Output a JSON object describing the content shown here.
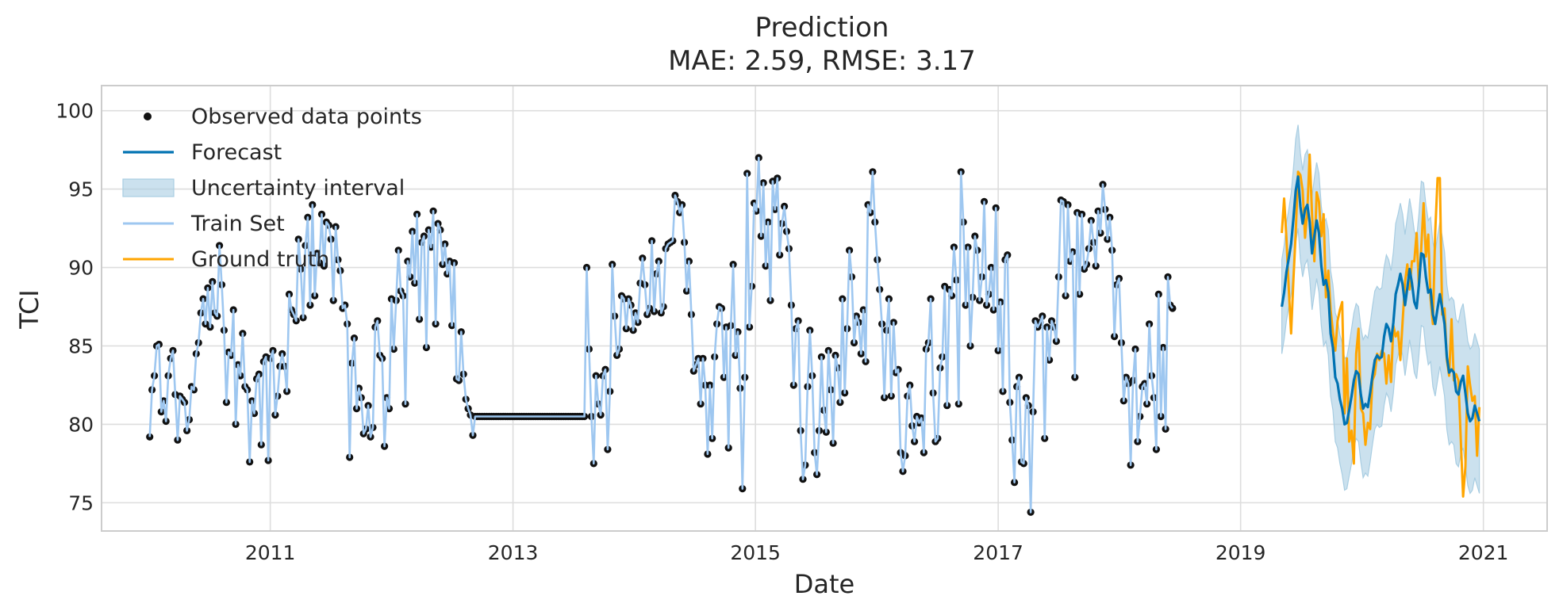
{
  "chart_data": {
    "type": "line",
    "title": "Prediction",
    "subtitle": "MAE: 2.59, RMSE: 3.17",
    "xlabel": "Date",
    "ylabel": "TCI",
    "xlim": [
      "2009-08-11",
      "2021-07-12"
    ],
    "ylim": [
      73.2,
      101.6
    ],
    "x_ticks": [
      "2011",
      "2013",
      "2015",
      "2017",
      "2019",
      "2021"
    ],
    "y_ticks": [
      75,
      80,
      85,
      90,
      95,
      100
    ],
    "grid": true,
    "legend_position": "upper-left",
    "legend": [
      "Observed data points",
      "Forecast",
      "Uncertainty interval",
      "Train Set",
      "Ground truth"
    ],
    "colors": {
      "observed": "#111111",
      "forecast": "#0072b2",
      "uncertainty": "#a8cde2",
      "train": "#9ec7f0",
      "ground_truth": "#ffa500"
    },
    "train_set": {
      "start": "2010-01-03",
      "end": "2019-04-28",
      "step_days": 7,
      "values": [
        79.2,
        82.2,
        83.1,
        85.0,
        85.1,
        80.8,
        81.5,
        80.2,
        83.1,
        84.2,
        84.7,
        81.9,
        79.0,
        81.8,
        81.6,
        81.4,
        79.6,
        80.3,
        82.4,
        82.2,
        84.5,
        85.2,
        87.1,
        88.0,
        86.4,
        88.7,
        86.2,
        89.1,
        87.1,
        86.9,
        91.4,
        88.9,
        86.0,
        81.4,
        84.6,
        84.4,
        87.3,
        80.0,
        83.8,
        83.1,
        85.8,
        82.4,
        82.2,
        77.6,
        81.5,
        80.7,
        82.9,
        83.2,
        78.7,
        84.0,
        84.3,
        77.7,
        84.2,
        84.7,
        80.6,
        81.8,
        83.7,
        84.5,
        83.7,
        82.1,
        88.3,
        87.3,
        87.0,
        86.6,
        91.8,
        89.9,
        86.8,
        91.4,
        93.2,
        87.6,
        94.0,
        88.2,
        90.9,
        90.3,
        93.4,
        90.1,
        92.9,
        92.7,
        91.8,
        87.9,
        92.6,
        90.5,
        89.8,
        87.4,
        87.6,
        86.4,
        77.9,
        83.9,
        85.5,
        81.0,
        82.3,
        81.7,
        79.4,
        79.7,
        81.2,
        79.2,
        79.8,
        86.2,
        86.6,
        84.4,
        84.2,
        78.6,
        81.7,
        81.0,
        88.0,
        84.8,
        87.9,
        91.1,
        88.5,
        88.2,
        81.3,
        90.4,
        89.4,
        92.3,
        89.0,
        93.4,
        86.7,
        91.6,
        92.0,
        84.9,
        92.4,
        91.3,
        93.6,
        86.4,
        92.8,
        92.4,
        90.2,
        91.5,
        89.6,
        90.4,
        86.3,
        90.3,
        82.9,
        82.8,
        85.9,
        83.2,
        81.6,
        81.0,
        80.6,
        79.3,
        80.5,
        80.5,
        80.5,
        80.5,
        80.5,
        80.5,
        80.5,
        80.5,
        80.5,
        80.5,
        80.5,
        80.5,
        80.5,
        80.5,
        80.5,
        80.5,
        80.5,
        80.5,
        80.5,
        80.5,
        80.5,
        80.5,
        80.5,
        80.5,
        80.5,
        80.5,
        80.5,
        80.5,
        80.5,
        80.5,
        80.5,
        80.5,
        80.5,
        80.5,
        80.5,
        80.5,
        80.5,
        80.5,
        80.5,
        80.5,
        80.5,
        80.5,
        80.5,
        80.5,
        80.5,
        80.5,
        80.5,
        80.5,
        90.0,
        84.8,
        80.5,
        77.5,
        83.1,
        81.3,
        80.6,
        83.1,
        83.5,
        78.4,
        82.1,
        90.2,
        86.9,
        84.4,
        84.8,
        88.2,
        88.0,
        86.1,
        88.0,
        87.6,
        86.0,
        87.1,
        86.5,
        89.0,
        90.6,
        88.9,
        87.0,
        87.4,
        91.7,
        87.2,
        89.6,
        90.4,
        87.1,
        87.5,
        91.2,
        91.5,
        91.6,
        91.7,
        94.6,
        94.2,
        93.5,
        94.0,
        91.6,
        88.5,
        90.4,
        87.0,
        83.4,
        83.8,
        84.2,
        81.3,
        84.2,
        82.5,
        78.1,
        82.5,
        79.1,
        84.3,
        86.4,
        87.5,
        87.4,
        83.0,
        86.2,
        78.5,
        86.3,
        90.2,
        84.4,
        85.9,
        82.3,
        75.9,
        83.0,
        96.0,
        86.2,
        88.8,
        94.1,
        93.6,
        97.0,
        92.0,
        95.4,
        90.1,
        92.9,
        87.9,
        95.5,
        93.7,
        95.7,
        90.8,
        92.8,
        93.9,
        92.3,
        91.2,
        87.6,
        82.5,
        86.1,
        86.6,
        79.6,
        76.5,
        77.4,
        82.4,
        86.0,
        83.1,
        78.2,
        76.8,
        79.6,
        84.3,
        80.9,
        79.5,
        84.7,
        82.2,
        78.8,
        84.4,
        83.6,
        81.4,
        88.0,
        82.0,
        86.1,
        91.1,
        89.4,
        85.2,
        86.9,
        86.5,
        84.5,
        87.3,
        84.0,
        94.0,
        93.5,
        96.1,
        92.9,
        90.5,
        88.6,
        86.4,
        81.7,
        86.0,
        88.0,
        81.8,
        86.5,
        83.3,
        83.5,
        78.2,
        77.0,
        78.0,
        81.8,
        82.5,
        79.9,
        78.9,
        80.5,
        80.1,
        80.4,
        78.2,
        84.8,
        85.2,
        88.0,
        82.0,
        78.9,
        79.1,
        83.6,
        84.3,
        88.8,
        81.2,
        88.6,
        88.2,
        91.3,
        89.2,
        81.3,
        96.1,
        92.9,
        87.6,
        91.3,
        85.0,
        88.1,
        92.0,
        91.1,
        87.9,
        89.4,
        94.2,
        87.6,
        88.3,
        90.0,
        87.3,
        93.8,
        84.7,
        87.8,
        82.1,
        90.5,
        90.8,
        81.4,
        79.0,
        76.3,
        82.4,
        83.0,
        77.6,
        77.5,
        81.7,
        81.2,
        74.4,
        80.8,
        86.6,
        86.2,
        86.5,
        86.9,
        79.1,
        86.2,
        84.1,
        86.6,
        86.2,
        85.3,
        89.4,
        94.3,
        94.2,
        88.2,
        94.0,
        90.4,
        91.0,
        83.0,
        93.5,
        88.3,
        93.4,
        89.9,
        90.2,
        91.2,
        93.0,
        91.6,
        90.1,
        93.6,
        92.2,
        95.3,
        93.7,
        91.8,
        93.2,
        91.1,
        85.6,
        88.9,
        89.3,
        85.2,
        81.5,
        83.0,
        82.6,
        77.4,
        82.8,
        84.8,
        78.9,
        80.5,
        82.4,
        82.6,
        81.3,
        86.4,
        83.1,
        81.7,
        78.4,
        88.3,
        80.5,
        84.9,
        79.7,
        89.4,
        87.6,
        87.4
      ]
    },
    "ground_truth": {
      "start": "2019-05-05",
      "end": "2020-12-27",
      "step_days": 7,
      "values": [
        92.2,
        94.4,
        91.9,
        88.6,
        85.8,
        89.2,
        92.2,
        96.1,
        95.9,
        94.9,
        91.9,
        93.7,
        97.2,
        93.4,
        90.4,
        94.8,
        94.2,
        92.0,
        93.4,
        88.1,
        89.8,
        87.3,
        85.9,
        84.7,
        86.6,
        87.3,
        87.8,
        80.7,
        84.2,
        78.9,
        79.6,
        77.5,
        84.5,
        86.1,
        81.0,
        80.7,
        78.7,
        80.1,
        79.7,
        82.8,
        83.2,
        84.5,
        84.1,
        84.7,
        84.5,
        82.6,
        84.4,
        82.7,
        86.3,
        85.6,
        85.9,
        84.1,
        86.6,
        89.1,
        90.2,
        88.6,
        90.4,
        90.4,
        92.2,
        88.8,
        91.3,
        94.1,
        90.7,
        92.1,
        88.0,
        86.4,
        92.2,
        95.7,
        95.7,
        87.0,
        87.4,
        84.1,
        83.1,
        86.7,
        82.8,
        83.2,
        82.8,
        79.0,
        75.4,
        77.3,
        83.7,
        82.5,
        81.5,
        81.8,
        78.0,
        81.1
      ]
    },
    "forecast": {
      "start": "2019-05-05",
      "end": "2020-12-27",
      "step_days": 7,
      "values": [
        87.5,
        88.4,
        89.7,
        90.6,
        91.5,
        93.1,
        94.9,
        95.8,
        93.9,
        92.8,
        93.7,
        94.0,
        92.9,
        90.9,
        92.0,
        93.0,
        92.2,
        90.1,
        88.9,
        89.2,
        88.4,
        85.8,
        84.9,
        83.0,
        82.6,
        81.6,
        81.0,
        80.0,
        80.1,
        80.9,
        81.8,
        82.8,
        83.4,
        83.2,
        81.9,
        81.0,
        81.3,
        81.1,
        82.0,
        83.1,
        84.1,
        84.4,
        84.2,
        84.3,
        85.6,
        86.4,
        86.1,
        85.3,
        86.5,
        88.3,
        88.9,
        89.6,
        88.9,
        87.6,
        88.7,
        89.9,
        89.0,
        87.8,
        87.4,
        88.9,
        90.9,
        90.8,
        89.4,
        88.4,
        88.6,
        87.0,
        86.4,
        87.4,
        88.3,
        87.4,
        86.4,
        84.3,
        83.3,
        83.5,
        83.3,
        82.1,
        81.9,
        82.7,
        83.1,
        82.0,
        80.7,
        80.2,
        80.4,
        81.2,
        80.7,
        80.2
      ]
    },
    "uncertainty_halfwidth": [
      3.0,
      3.0,
      3.1,
      3.1,
      3.2,
      3.2,
      3.3,
      3.3,
      3.4,
      3.4,
      3.5,
      3.5,
      3.6,
      3.6,
      3.7,
      3.7,
      3.8,
      3.8,
      3.9,
      3.9,
      4.0,
      4.0,
      4.0,
      4.1,
      4.1,
      4.1,
      4.2,
      4.2,
      4.2,
      4.2,
      4.3,
      4.3,
      4.3,
      4.3,
      4.3,
      4.4,
      4.4,
      4.4,
      4.4,
      4.4,
      4.4,
      4.4,
      4.4,
      4.4,
      4.4,
      4.4,
      4.4,
      4.5,
      4.5,
      4.5,
      4.5,
      4.5,
      4.5,
      4.5,
      4.5,
      4.5,
      4.5,
      4.5,
      4.5,
      4.5,
      4.6,
      4.6,
      4.6,
      4.6,
      4.6,
      4.6,
      4.6,
      4.6,
      4.6,
      4.6,
      4.6,
      4.6,
      4.6,
      4.6,
      4.6,
      4.6,
      4.6,
      4.6,
      4.6,
      4.6,
      4.6,
      4.6,
      4.6,
      4.6,
      4.6,
      4.6
    ]
  }
}
